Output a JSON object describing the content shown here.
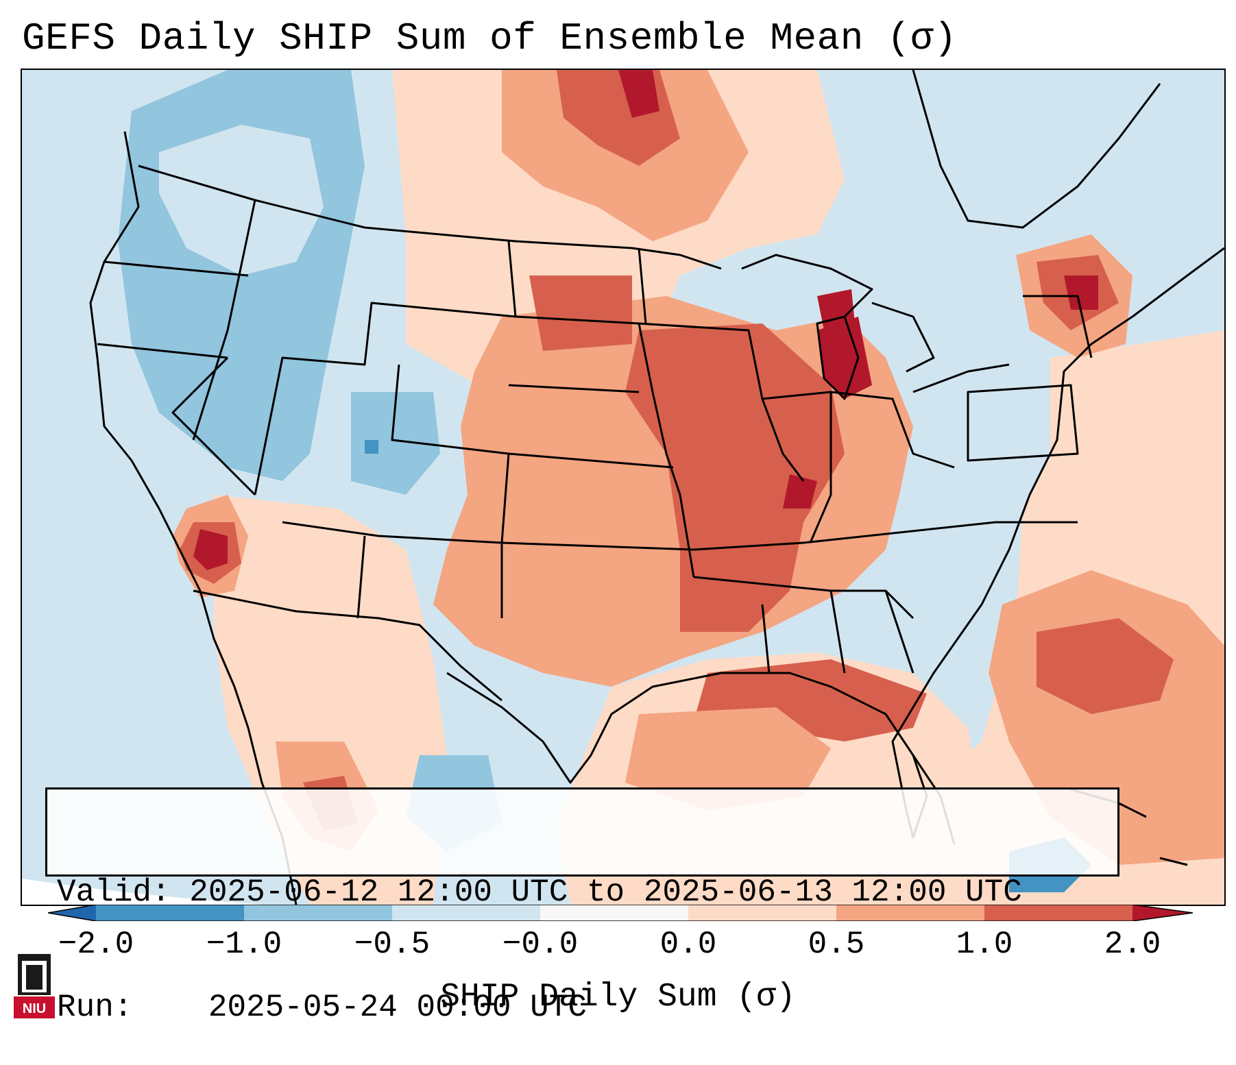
{
  "title": "GEFS Daily SHIP Sum of Ensemble Mean (σ)",
  "info": {
    "valid_label": "Valid:",
    "valid_value": "2025-06-12 12:00 UTC to 2025-06-13 12:00 UTC",
    "run_label": "Run:",
    "run_value": "2025-05-24 00:00 UTC"
  },
  "colorbar": {
    "label": "SHIP Daily Sum (σ)",
    "ticks": [
      "−2.0",
      "−1.0",
      "−0.5",
      "−0.0",
      "0.0",
      "0.5",
      "1.0",
      "2.0"
    ],
    "colors": [
      "#2166ac",
      "#4393c3",
      "#92c5de",
      "#d1e5f0",
      "#f7f7f7",
      "#fddbc7",
      "#f4a582",
      "#d6604d",
      "#b2182b"
    ]
  },
  "logo": {
    "text": "NIU"
  },
  "map": {
    "domain": "Continental United States",
    "colors": {
      "ocean_neutral": "#d1e5f0",
      "light_pos": "#fddbc7",
      "mid_pos": "#f4a582",
      "high_pos": "#d6604d",
      "max_pos": "#b2182b",
      "light_neg": "#92c5de",
      "mid_neg": "#4393c3"
    }
  }
}
